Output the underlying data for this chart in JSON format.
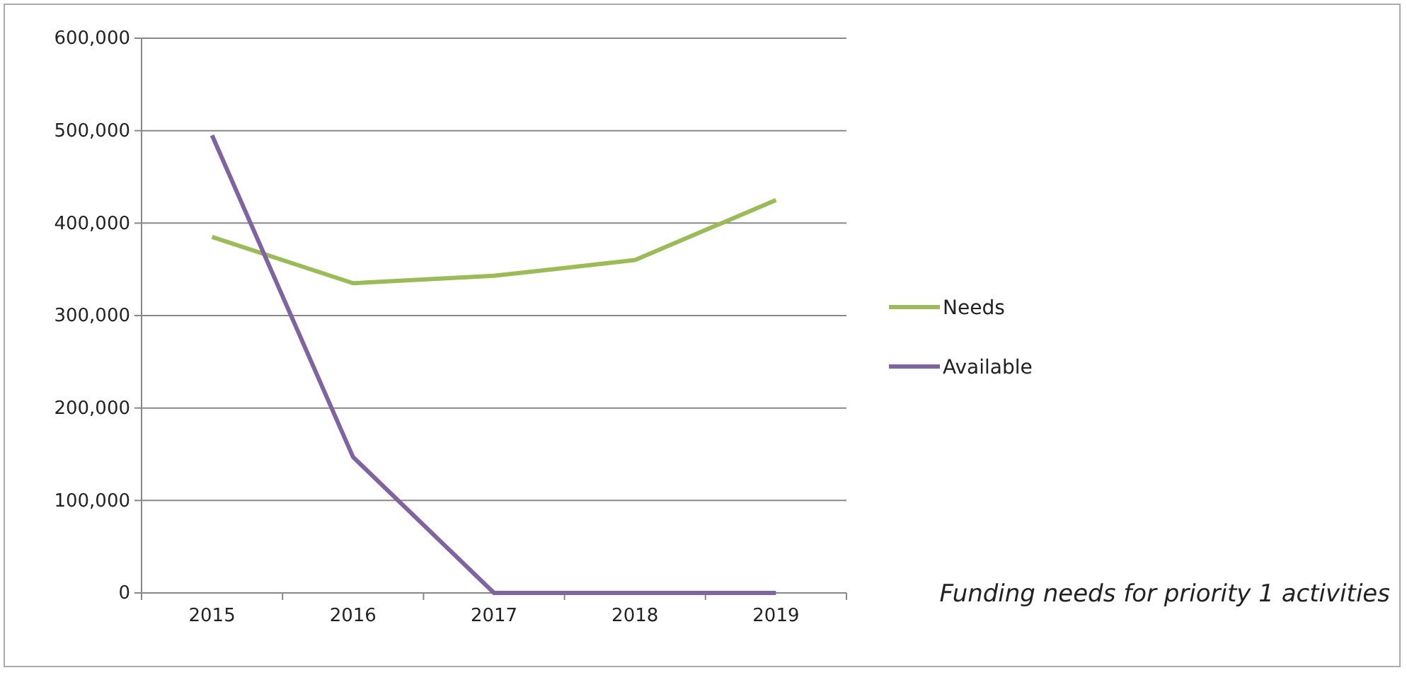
{
  "chart_data": {
    "type": "line",
    "categories": [
      "2015",
      "2016",
      "2017",
      "2018",
      "2019"
    ],
    "series": [
      {
        "name": "Needs",
        "color": "#9bbb59",
        "values": [
          385000,
          335000,
          343000,
          360000,
          425000
        ]
      },
      {
        "name": "Available",
        "color": "#8064a2",
        "values": [
          495000,
          147000,
          0,
          0,
          0
        ]
      }
    ],
    "ylim": [
      0,
      600000
    ],
    "yticks": [
      {
        "value": 0,
        "label": "0"
      },
      {
        "value": 100000,
        "label": "100,000"
      },
      {
        "value": 200000,
        "label": "200,000"
      },
      {
        "value": 300000,
        "label": "300,000"
      },
      {
        "value": 400000,
        "label": "400,000"
      },
      {
        "value": 500000,
        "label": "500,000"
      },
      {
        "value": 600000,
        "label": "600,000"
      }
    ],
    "grid": "y",
    "legend": "right",
    "marker": "none",
    "line_style": "solid",
    "annotations": [
      "Funding needs for priority 1 activities"
    ]
  }
}
